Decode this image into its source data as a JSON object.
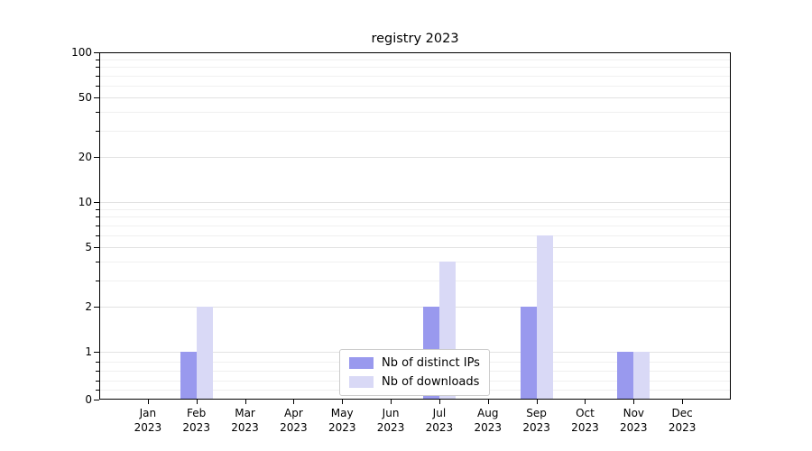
{
  "chart_data": {
    "type": "bar",
    "title": "registry 2023",
    "categories": [
      "Jan 2023",
      "Feb 2023",
      "Mar 2023",
      "Apr 2023",
      "May 2023",
      "Jun 2023",
      "Jul 2023",
      "Aug 2023",
      "Sep 2023",
      "Oct 2023",
      "Nov 2023",
      "Dec 2023"
    ],
    "series": [
      {
        "name": "Nb of distinct IPs",
        "color": "#9999ee",
        "values": [
          0,
          1,
          0,
          0,
          0,
          0,
          2,
          0,
          2,
          0,
          1,
          0
        ]
      },
      {
        "name": "Nb of downloads",
        "color": "#d9d9f6",
        "values": [
          0,
          2,
          0,
          0,
          0,
          0,
          4,
          0,
          6,
          0,
          1,
          0
        ]
      }
    ],
    "y_scale": "symlog",
    "ylim": [
      0,
      100
    ],
    "y_ticks": [
      0,
      1,
      2,
      5,
      10,
      20,
      50,
      100
    ],
    "y_minor_ticks": [
      0.2,
      0.4,
      0.6,
      0.8,
      3,
      4,
      6,
      7,
      8,
      9,
      30,
      40,
      60,
      70,
      80,
      90
    ],
    "grid": "horizontal",
    "legend_position": "lower center"
  }
}
